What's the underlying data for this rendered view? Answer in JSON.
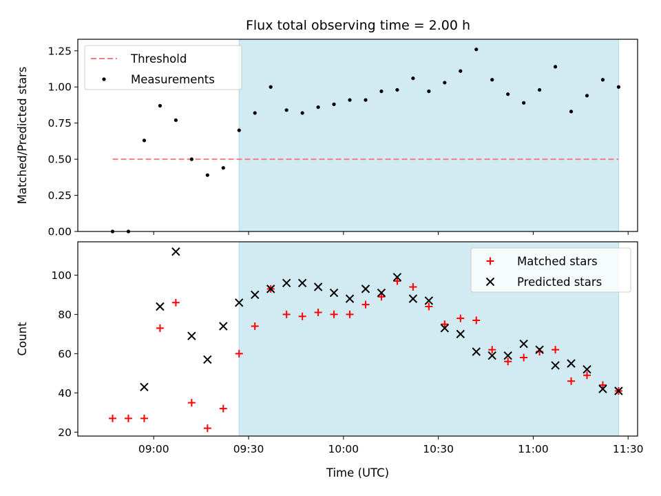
{
  "chart_data": [
    {
      "type": "scatter",
      "title": "Flux total observing time = 2.00 h",
      "ylabel": "Matched/Predicted stars",
      "ylim": [
        0,
        1.33
      ],
      "yticks": [
        0.0,
        0.25,
        0.5,
        0.75,
        1.0,
        1.25
      ],
      "ytick_labels": [
        "0.00",
        "0.25",
        "0.50",
        "0.75",
        "1.00",
        "1.25"
      ],
      "xlim": [
        "08:36",
        "11:33"
      ],
      "shaded_interval": [
        "09:27",
        "11:27"
      ],
      "shade_color": "#add8e6",
      "threshold": {
        "name": "Threshold",
        "value": 0.5,
        "x_range": [
          "08:47",
          "11:27"
        ],
        "color": "#f08080"
      },
      "legend_position": "upper left",
      "legend": [
        "Threshold",
        "Measurements"
      ],
      "series": [
        {
          "name": "Measurements",
          "color": "#000000",
          "marker": "dot",
          "points": [
            [
              "08:47",
              0.0
            ],
            [
              "08:52",
              0.0
            ],
            [
              "08:57",
              0.63
            ],
            [
              "09:02",
              0.87
            ],
            [
              "09:07",
              0.77
            ],
            [
              "09:12",
              0.5
            ],
            [
              "09:17",
              0.39
            ],
            [
              "09:22",
              0.44
            ],
            [
              "09:27",
              0.7
            ],
            [
              "09:32",
              0.82
            ],
            [
              "09:37",
              1.0
            ],
            [
              "09:42",
              0.84
            ],
            [
              "09:47",
              0.82
            ],
            [
              "09:52",
              0.86
            ],
            [
              "09:57",
              0.88
            ],
            [
              "10:02",
              0.91
            ],
            [
              "10:07",
              0.91
            ],
            [
              "10:12",
              0.97
            ],
            [
              "10:17",
              0.98
            ],
            [
              "10:22",
              1.06
            ],
            [
              "10:27",
              0.97
            ],
            [
              "10:32",
              1.03
            ],
            [
              "10:37",
              1.11
            ],
            [
              "10:42",
              1.26
            ],
            [
              "10:47",
              1.05
            ],
            [
              "10:52",
              0.95
            ],
            [
              "10:57",
              0.89
            ],
            [
              "11:02",
              0.98
            ],
            [
              "11:07",
              1.14
            ],
            [
              "11:12",
              0.83
            ],
            [
              "11:17",
              0.94
            ],
            [
              "11:22",
              1.05
            ],
            [
              "11:27",
              1.0
            ]
          ]
        }
      ]
    },
    {
      "type": "scatter",
      "xlabel": "Time (UTC)",
      "ylabel": "Count",
      "ylim": [
        18,
        117
      ],
      "yticks": [
        20,
        40,
        60,
        80,
        100
      ],
      "ytick_labels": [
        "20",
        "40",
        "60",
        "80",
        "100"
      ],
      "xlim": [
        "08:36",
        "11:33"
      ],
      "xticks": [
        "09:00",
        "09:30",
        "10:00",
        "10:30",
        "11:00",
        "11:30"
      ],
      "xtick_labels": [
        "09:00",
        "09:30",
        "10:00",
        "10:30",
        "11:00",
        "11:30"
      ],
      "shaded_interval": [
        "09:27",
        "11:27"
      ],
      "shade_color": "#add8e6",
      "legend_position": "upper right",
      "legend": [
        "Matched stars",
        "Predicted stars"
      ],
      "series": [
        {
          "name": "Matched stars",
          "color": "#ff0000",
          "marker": "plus",
          "points": [
            [
              "08:47",
              27
            ],
            [
              "08:52",
              27
            ],
            [
              "08:57",
              27
            ],
            [
              "09:02",
              73
            ],
            [
              "09:07",
              86
            ],
            [
              "09:12",
              35
            ],
            [
              "09:17",
              22
            ],
            [
              "09:22",
              32
            ],
            [
              "09:27",
              60
            ],
            [
              "09:32",
              74
            ],
            [
              "09:37",
              93
            ],
            [
              "09:42",
              80
            ],
            [
              "09:47",
              79
            ],
            [
              "09:52",
              81
            ],
            [
              "09:57",
              80
            ],
            [
              "10:02",
              80
            ],
            [
              "10:07",
              85
            ],
            [
              "10:12",
              89
            ],
            [
              "10:17",
              97
            ],
            [
              "10:22",
              94
            ],
            [
              "10:27",
              84
            ],
            [
              "10:32",
              75
            ],
            [
              "10:37",
              78
            ],
            [
              "10:42",
              77
            ],
            [
              "10:47",
              62
            ],
            [
              "10:52",
              56
            ],
            [
              "10:57",
              58
            ],
            [
              "11:02",
              61
            ],
            [
              "11:07",
              62
            ],
            [
              "11:12",
              46
            ],
            [
              "11:17",
              49
            ],
            [
              "11:22",
              44
            ],
            [
              "11:27",
              41
            ]
          ]
        },
        {
          "name": "Predicted stars",
          "color": "#000000",
          "marker": "x",
          "points": [
            [
              "08:57",
              43
            ],
            [
              "09:02",
              84
            ],
            [
              "09:07",
              112
            ],
            [
              "09:12",
              69
            ],
            [
              "09:17",
              57
            ],
            [
              "09:22",
              74
            ],
            [
              "09:27",
              86
            ],
            [
              "09:32",
              90
            ],
            [
              "09:37",
              93
            ],
            [
              "09:42",
              96
            ],
            [
              "09:47",
              96
            ],
            [
              "09:52",
              94
            ],
            [
              "09:57",
              91
            ],
            [
              "10:02",
              88
            ],
            [
              "10:07",
              93
            ],
            [
              "10:12",
              91
            ],
            [
              "10:17",
              99
            ],
            [
              "10:22",
              88
            ],
            [
              "10:27",
              87
            ],
            [
              "10:32",
              73
            ],
            [
              "10:37",
              70
            ],
            [
              "10:42",
              61
            ],
            [
              "10:47",
              59
            ],
            [
              "10:52",
              59
            ],
            [
              "10:57",
              65
            ],
            [
              "11:02",
              62
            ],
            [
              "11:07",
              54
            ],
            [
              "11:12",
              55
            ],
            [
              "11:17",
              52
            ],
            [
              "11:22",
              42
            ],
            [
              "11:27",
              41
            ]
          ]
        }
      ]
    }
  ]
}
